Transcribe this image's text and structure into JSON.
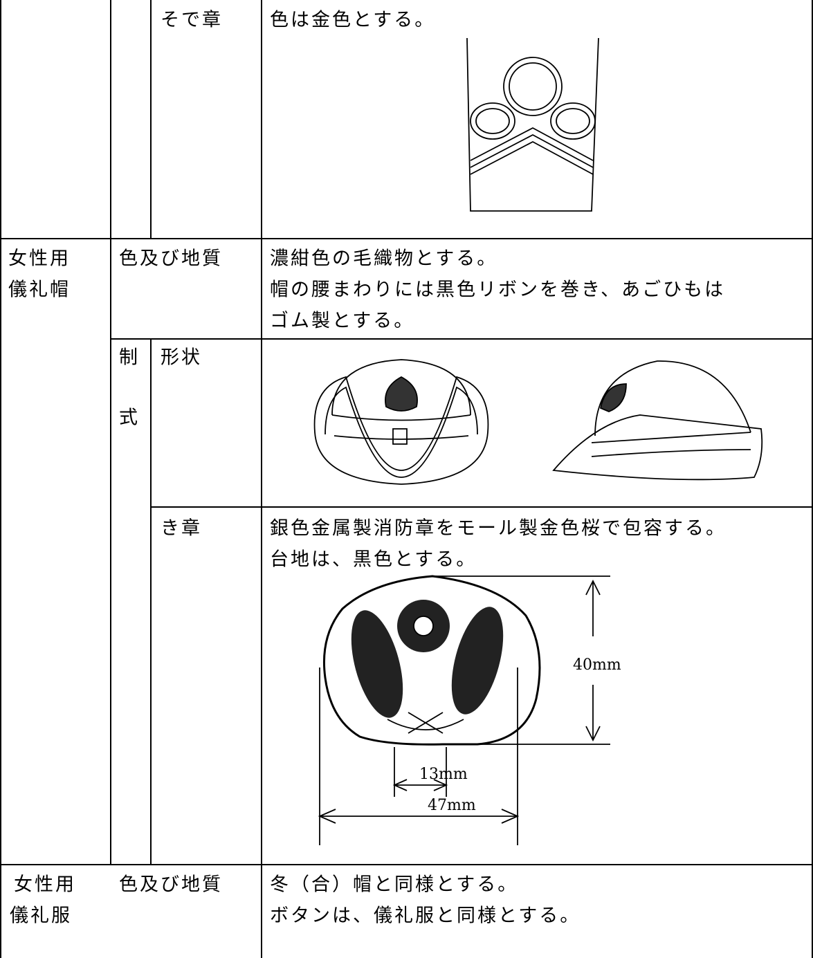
{
  "sleeve_badge": {
    "label": "そで章",
    "text": "色は金色とする。"
  },
  "cap": {
    "label": [
      "女性用",
      "儀礼帽"
    ],
    "material": {
      "label": "色及び地質",
      "lines": [
        "濃紺色の毛織物とする。",
        "帽の腰まわりには黒色リボンを巻き、あごひもは",
        "ゴム製とする。"
      ]
    },
    "form": {
      "label": [
        "制",
        "式"
      ],
      "shape": {
        "label": "形状"
      },
      "badge": {
        "label": "き章",
        "lines": [
          "銀色金属製消防章をモール製金色桜で包容する。",
          "台地は、黒色とする。"
        ],
        "dimensions": {
          "height": "40mm",
          "inner": "13mm",
          "width": "47mm"
        }
      }
    }
  },
  "uniform": {
    "label": [
      "女性用",
      "儀礼服"
    ],
    "material": {
      "label": "色及び地質",
      "lines": [
        "冬（合）帽と同様とする。",
        "ボタンは、儀礼服と同様とする。"
      ]
    }
  }
}
